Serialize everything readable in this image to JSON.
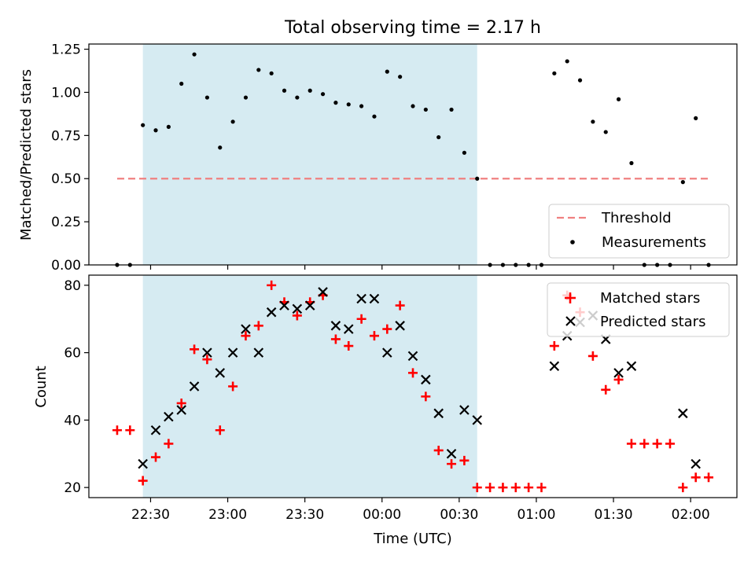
{
  "chart_data": [
    {
      "type": "scatter",
      "title": "Total observing time = 2.17 h",
      "ylabel": "Matched/Predicted stars",
      "xlabel": "",
      "ylim": [
        0,
        1.28
      ],
      "yticks": [
        0.0,
        0.25,
        0.5,
        0.75,
        1.0,
        1.25
      ],
      "ytick_labels": [
        "0.00",
        "0.25",
        "0.50",
        "0.75",
        "1.00",
        "1.25"
      ],
      "grid": false,
      "legend_position": "lower-right",
      "observing_window": {
        "start": "22:27",
        "end": "00:37"
      },
      "threshold": {
        "name": "Threshold",
        "value": 0.5,
        "from": "22:17",
        "to": "02:07",
        "color": "#f08080"
      },
      "series": [
        {
          "name": "Measurements",
          "color": "#000000",
          "points": [
            {
              "x": "22:17",
              "y": 0.0
            },
            {
              "x": "22:22",
              "y": 0.0
            },
            {
              "x": "22:27",
              "y": 0.81
            },
            {
              "x": "22:32",
              "y": 0.78
            },
            {
              "x": "22:37",
              "y": 0.8
            },
            {
              "x": "22:42",
              "y": 1.05
            },
            {
              "x": "22:47",
              "y": 1.22
            },
            {
              "x": "22:52",
              "y": 0.97
            },
            {
              "x": "22:57",
              "y": 0.68
            },
            {
              "x": "23:02",
              "y": 0.83
            },
            {
              "x": "23:07",
              "y": 0.97
            },
            {
              "x": "23:12",
              "y": 1.13
            },
            {
              "x": "23:17",
              "y": 1.11
            },
            {
              "x": "23:22",
              "y": 1.01
            },
            {
              "x": "23:27",
              "y": 0.97
            },
            {
              "x": "23:32",
              "y": 1.01
            },
            {
              "x": "23:37",
              "y": 0.99
            },
            {
              "x": "23:42",
              "y": 0.94
            },
            {
              "x": "23:47",
              "y": 0.93
            },
            {
              "x": "23:52",
              "y": 0.92
            },
            {
              "x": "23:57",
              "y": 0.86
            },
            {
              "x": "00:02",
              "y": 1.12
            },
            {
              "x": "00:07",
              "y": 1.09
            },
            {
              "x": "00:12",
              "y": 0.92
            },
            {
              "x": "00:17",
              "y": 0.9
            },
            {
              "x": "00:22",
              "y": 0.74
            },
            {
              "x": "00:27",
              "y": 0.9
            },
            {
              "x": "00:32",
              "y": 0.65
            },
            {
              "x": "00:37",
              "y": 0.5
            },
            {
              "x": "00:42",
              "y": 0.0
            },
            {
              "x": "00:47",
              "y": 0.0
            },
            {
              "x": "00:52",
              "y": 0.0
            },
            {
              "x": "00:57",
              "y": 0.0
            },
            {
              "x": "01:02",
              "y": 0.0
            },
            {
              "x": "01:07",
              "y": 1.11
            },
            {
              "x": "01:12",
              "y": 1.18
            },
            {
              "x": "01:17",
              "y": 1.07
            },
            {
              "x": "01:22",
              "y": 0.83
            },
            {
              "x": "01:27",
              "y": 0.77
            },
            {
              "x": "01:32",
              "y": 0.96
            },
            {
              "x": "01:37",
              "y": 0.59
            },
            {
              "x": "01:42",
              "y": 0.0
            },
            {
              "x": "01:47",
              "y": 0.0
            },
            {
              "x": "01:52",
              "y": 0.0
            },
            {
              "x": "01:57",
              "y": 0.48
            },
            {
              "x": "02:02",
              "y": 0.85
            },
            {
              "x": "02:07",
              "y": 0.0
            }
          ]
        }
      ],
      "legend": [
        "Threshold",
        "Measurements"
      ]
    },
    {
      "type": "scatter",
      "title": "",
      "ylabel": "Count",
      "xlabel": "Time (UTC)",
      "ylim": [
        17,
        83
      ],
      "yticks": [
        20,
        40,
        60,
        80
      ],
      "ytick_labels": [
        "20",
        "40",
        "60",
        "80"
      ],
      "xlim": [
        "22:06",
        "02:18"
      ],
      "xticks": [
        "22:30",
        "23:00",
        "23:30",
        "00:00",
        "00:30",
        "01:00",
        "01:30",
        "02:00"
      ],
      "grid": false,
      "legend_position": "upper-right",
      "observing_window": {
        "start": "22:27",
        "end": "00:37"
      },
      "series": [
        {
          "name": "Matched stars",
          "marker": "plus",
          "color": "#ff0000",
          "points": [
            {
              "x": "22:17",
              "y": 37
            },
            {
              "x": "22:22",
              "y": 37
            },
            {
              "x": "22:27",
              "y": 22
            },
            {
              "x": "22:32",
              "y": 29
            },
            {
              "x": "22:37",
              "y": 33
            },
            {
              "x": "22:42",
              "y": 45
            },
            {
              "x": "22:47",
              "y": 61
            },
            {
              "x": "22:52",
              "y": 58
            },
            {
              "x": "22:57",
              "y": 37
            },
            {
              "x": "23:02",
              "y": 50
            },
            {
              "x": "23:07",
              "y": 65
            },
            {
              "x": "23:12",
              "y": 68
            },
            {
              "x": "23:17",
              "y": 80
            },
            {
              "x": "23:22",
              "y": 75
            },
            {
              "x": "23:27",
              "y": 71
            },
            {
              "x": "23:32",
              "y": 75
            },
            {
              "x": "23:37",
              "y": 77
            },
            {
              "x": "23:42",
              "y": 64
            },
            {
              "x": "23:47",
              "y": 62
            },
            {
              "x": "23:52",
              "y": 70
            },
            {
              "x": "23:57",
              "y": 65
            },
            {
              "x": "00:02",
              "y": 67
            },
            {
              "x": "00:07",
              "y": 74
            },
            {
              "x": "00:12",
              "y": 54
            },
            {
              "x": "00:17",
              "y": 47
            },
            {
              "x": "00:22",
              "y": 31
            },
            {
              "x": "00:27",
              "y": 27
            },
            {
              "x": "00:32",
              "y": 28
            },
            {
              "x": "00:37",
              "y": 20
            },
            {
              "x": "00:42",
              "y": 20
            },
            {
              "x": "00:47",
              "y": 20
            },
            {
              "x": "00:52",
              "y": 20
            },
            {
              "x": "00:57",
              "y": 20
            },
            {
              "x": "01:02",
              "y": 20
            },
            {
              "x": "01:07",
              "y": 62
            },
            {
              "x": "01:12",
              "y": 77
            },
            {
              "x": "01:17",
              "y": 72
            },
            {
              "x": "01:22",
              "y": 59
            },
            {
              "x": "01:27",
              "y": 49
            },
            {
              "x": "01:32",
              "y": 52
            },
            {
              "x": "01:37",
              "y": 33
            },
            {
              "x": "01:42",
              "y": 33
            },
            {
              "x": "01:47",
              "y": 33
            },
            {
              "x": "01:52",
              "y": 33
            },
            {
              "x": "01:57",
              "y": 20
            },
            {
              "x": "02:02",
              "y": 23
            },
            {
              "x": "02:07",
              "y": 23
            }
          ]
        },
        {
          "name": "Predicted stars",
          "marker": "x",
          "color": "#000000",
          "points": [
            {
              "x": "22:27",
              "y": 27
            },
            {
              "x": "22:32",
              "y": 37
            },
            {
              "x": "22:37",
              "y": 41
            },
            {
              "x": "22:42",
              "y": 43
            },
            {
              "x": "22:47",
              "y": 50
            },
            {
              "x": "22:52",
              "y": 60
            },
            {
              "x": "22:57",
              "y": 54
            },
            {
              "x": "23:02",
              "y": 60
            },
            {
              "x": "23:07",
              "y": 67
            },
            {
              "x": "23:12",
              "y": 60
            },
            {
              "x": "23:17",
              "y": 72
            },
            {
              "x": "23:22",
              "y": 74
            },
            {
              "x": "23:27",
              "y": 73
            },
            {
              "x": "23:32",
              "y": 74
            },
            {
              "x": "23:37",
              "y": 78
            },
            {
              "x": "23:42",
              "y": 68
            },
            {
              "x": "23:47",
              "y": 67
            },
            {
              "x": "23:52",
              "y": 76
            },
            {
              "x": "23:57",
              "y": 76
            },
            {
              "x": "00:02",
              "y": 60
            },
            {
              "x": "00:07",
              "y": 68
            },
            {
              "x": "00:12",
              "y": 59
            },
            {
              "x": "00:17",
              "y": 52
            },
            {
              "x": "00:22",
              "y": 42
            },
            {
              "x": "00:27",
              "y": 30
            },
            {
              "x": "00:32",
              "y": 43
            },
            {
              "x": "00:37",
              "y": 40
            },
            {
              "x": "01:07",
              "y": 56
            },
            {
              "x": "01:12",
              "y": 65
            },
            {
              "x": "01:17",
              "y": 69
            },
            {
              "x": "01:22",
              "y": 71
            },
            {
              "x": "01:27",
              "y": 64
            },
            {
              "x": "01:32",
              "y": 54
            },
            {
              "x": "01:37",
              "y": 56
            },
            {
              "x": "01:57",
              "y": 42
            },
            {
              "x": "02:02",
              "y": 27
            }
          ]
        }
      ],
      "legend": [
        "Matched stars",
        "Predicted stars"
      ]
    }
  ],
  "colors": {
    "observing_window": "#add8e6",
    "threshold": "#f08080",
    "matched": "#ff0000",
    "predicted": "#000000",
    "measurements": "#000000"
  }
}
